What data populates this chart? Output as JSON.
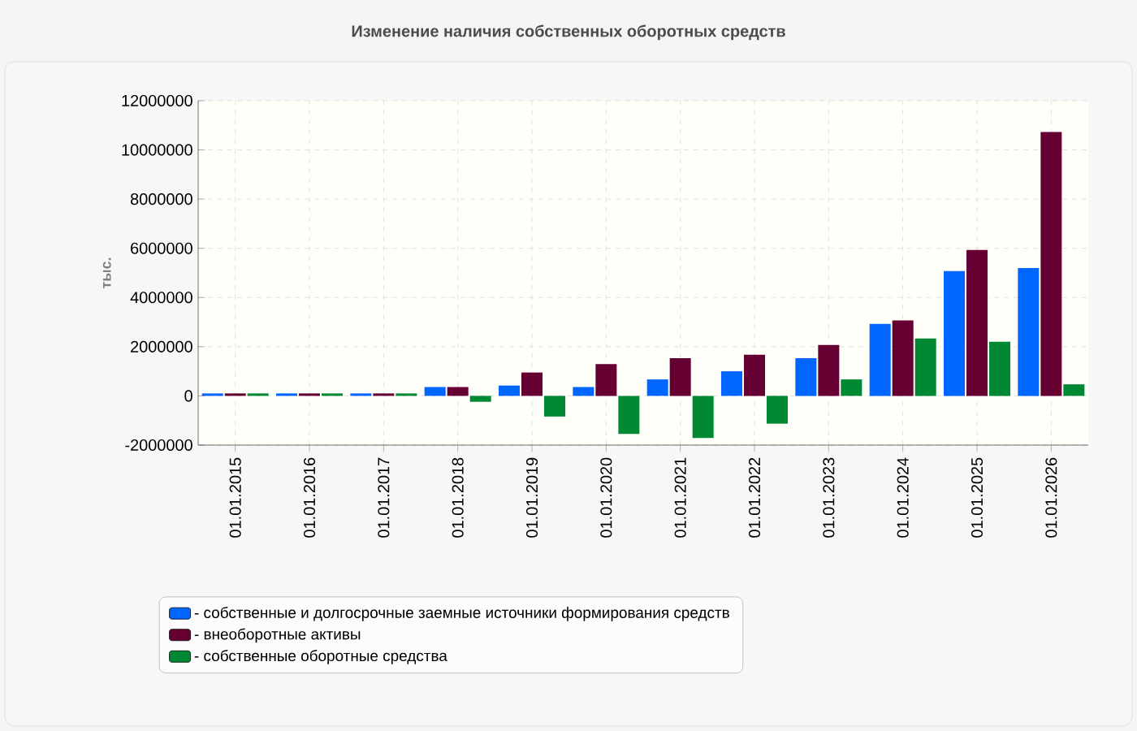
{
  "chart_data": {
    "type": "bar",
    "title": "Изменение наличия собственных оборотных средств",
    "ylabel": "тыс.",
    "categories": [
      "01.01.2015",
      "01.01.2016",
      "01.01.2017",
      "01.01.2018",
      "01.01.2019",
      "01.01.2020",
      "01.01.2021",
      "01.01.2022",
      "01.01.2023",
      "01.01.2024",
      "01.01.2025",
      "01.01.2026"
    ],
    "series": [
      {
        "name": "- собственные и долгосрочные заемные источники формирования средств",
        "color": "#0066ff",
        "values": [
          100000,
          100000,
          100000,
          360000,
          420000,
          360000,
          670000,
          1000000,
          1530000,
          2930000,
          5070000,
          5200000
        ]
      },
      {
        "name": "- внеоборотные активы",
        "color": "#660033",
        "values": [
          100000,
          100000,
          100000,
          360000,
          950000,
          1290000,
          1530000,
          1670000,
          2070000,
          3070000,
          5930000,
          10730000
        ]
      },
      {
        "name": "- собственные оборотные средства",
        "color": "#008833",
        "values": [
          100000,
          100000,
          100000,
          -240000,
          -840000,
          -1550000,
          -1710000,
          -1130000,
          670000,
          2330000,
          2200000,
          470000
        ]
      }
    ],
    "ylim": [
      -2000000,
      12000000
    ],
    "yticks": [
      -2000000,
      0,
      2000000,
      4000000,
      6000000,
      8000000,
      10000000,
      12000000
    ],
    "grid": true,
    "legend": "bottom"
  }
}
